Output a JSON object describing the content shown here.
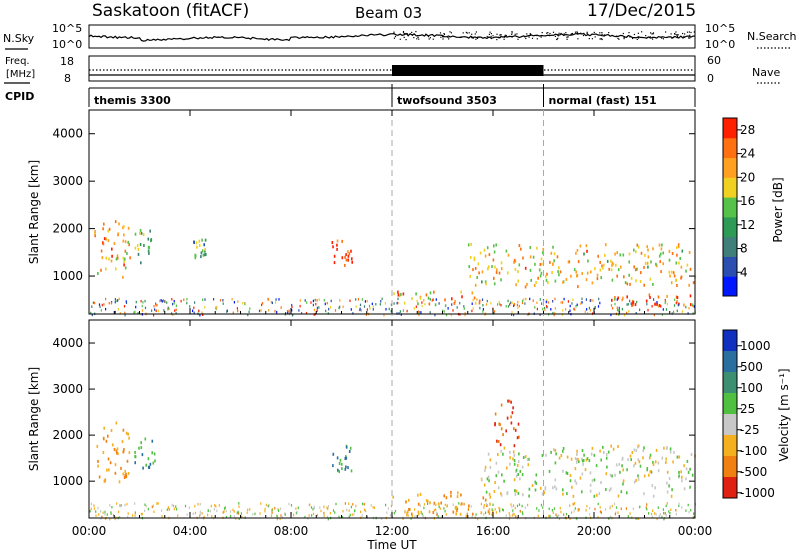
{
  "header": {
    "station": "Saskatoon (fitACF)",
    "beam": "Beam 03",
    "date": "17/Dec/2015"
  },
  "top_panels": {
    "nsky_label": "N.Sky",
    "nsky_ticks": [
      "10^5",
      "10^0"
    ],
    "nsearch_label": "N.Search",
    "nsearch_ticks": [
      "10^5",
      "10^0"
    ],
    "freq_label_1": "Freq.",
    "freq_label_2": "[MHz]",
    "freq_ticks": [
      "18",
      "8"
    ],
    "nave_label": "Nave",
    "nave_ticks": [
      "60",
      "0"
    ],
    "cpid_label": "CPID",
    "cpid_segments": [
      {
        "label": "themis 3300",
        "start_hour": 0
      },
      {
        "label": "twofsound 3503",
        "start_hour": 12
      },
      {
        "label": "normal (fast) 151",
        "start_hour": 18
      }
    ]
  },
  "axes": {
    "xlabel": "Time UT",
    "x_ticks": [
      "00:00",
      "04:00",
      "08:00",
      "12:00",
      "16:00",
      "20:00",
      "00:00"
    ],
    "ylabel": "Slant Range [km]",
    "y_ticks": [
      "1000",
      "2000",
      "3000",
      "4000"
    ]
  },
  "power_scale": {
    "label": "Power [dB]",
    "ticks": [
      "4",
      "8",
      "12",
      "16",
      "20",
      "24",
      "28"
    ],
    "colors": [
      "#0018ff",
      "#2a4fb0",
      "#3f7f7a",
      "#2f9a55",
      "#56c24a",
      "#f0d020",
      "#ffa020",
      "#ff7010",
      "#ff2000"
    ]
  },
  "velocity_scale": {
    "label": "Velocity [m s⁻¹]",
    "ticks": [
      "1000",
      "500",
      "100",
      "25",
      "-25",
      "-100",
      "-500",
      "-1000"
    ],
    "colors": [
      "#1030c0",
      "#2a6fa0",
      "#3c8f70",
      "#50c040",
      "#c8c8c8",
      "#f5b020",
      "#f08010",
      "#e02010"
    ]
  },
  "chart_data": [
    {
      "type": "heatmap",
      "title": "Power",
      "xlabel": "Time UT",
      "ylabel": "Slant Range [km]",
      "xlim": [
        0,
        24
      ],
      "ylim": [
        200,
        4500
      ],
      "colorbar_label": "Power [dB]",
      "colorbar_range": [
        0,
        30
      ],
      "regions": [
        {
          "t": [
            0.2,
            1.6
          ],
          "r": [
            1000,
            2300
          ],
          "value": 22
        },
        {
          "t": [
            1.7,
            2.6
          ],
          "r": [
            1300,
            2000
          ],
          "value": 12
        },
        {
          "t": [
            4.0,
            4.6
          ],
          "r": [
            1400,
            1800
          ],
          "value": 12
        },
        {
          "t": [
            9.6,
            10.4
          ],
          "r": [
            1200,
            1800
          ],
          "value": 28
        },
        {
          "t": [
            12.0,
            15.5
          ],
          "r": [
            400,
            700
          ],
          "value": 22
        },
        {
          "t": [
            15.0,
            24.0
          ],
          "r": [
            800,
            1700
          ],
          "value": 20
        },
        {
          "t": [
            20.5,
            24.0
          ],
          "r": [
            400,
            700
          ],
          "value": 28
        }
      ]
    },
    {
      "type": "heatmap",
      "title": "Velocity",
      "xlabel": "Time UT",
      "ylabel": "Slant Range [km]",
      "xlim": [
        0,
        24
      ],
      "ylim": [
        200,
        4500
      ],
      "colorbar_label": "Velocity [m s⁻¹]",
      "colorbar_range": [
        -1000,
        1000
      ],
      "regions": [
        {
          "t": [
            0.2,
            1.6
          ],
          "r": [
            1000,
            2300
          ],
          "value": -100
        },
        {
          "t": [
            1.7,
            2.6
          ],
          "r": [
            1300,
            2000
          ],
          "value": 100
        },
        {
          "t": [
            9.6,
            10.4
          ],
          "r": [
            1200,
            1800
          ],
          "value": 100
        },
        {
          "t": [
            12.0,
            16.0
          ],
          "r": [
            300,
            800
          ],
          "value": -100
        },
        {
          "t": [
            15.5,
            24.0
          ],
          "r": [
            700,
            1800
          ],
          "value": 0
        },
        {
          "t": [
            16.0,
            17.0
          ],
          "r": [
            1800,
            2800
          ],
          "value": -500
        }
      ]
    }
  ]
}
